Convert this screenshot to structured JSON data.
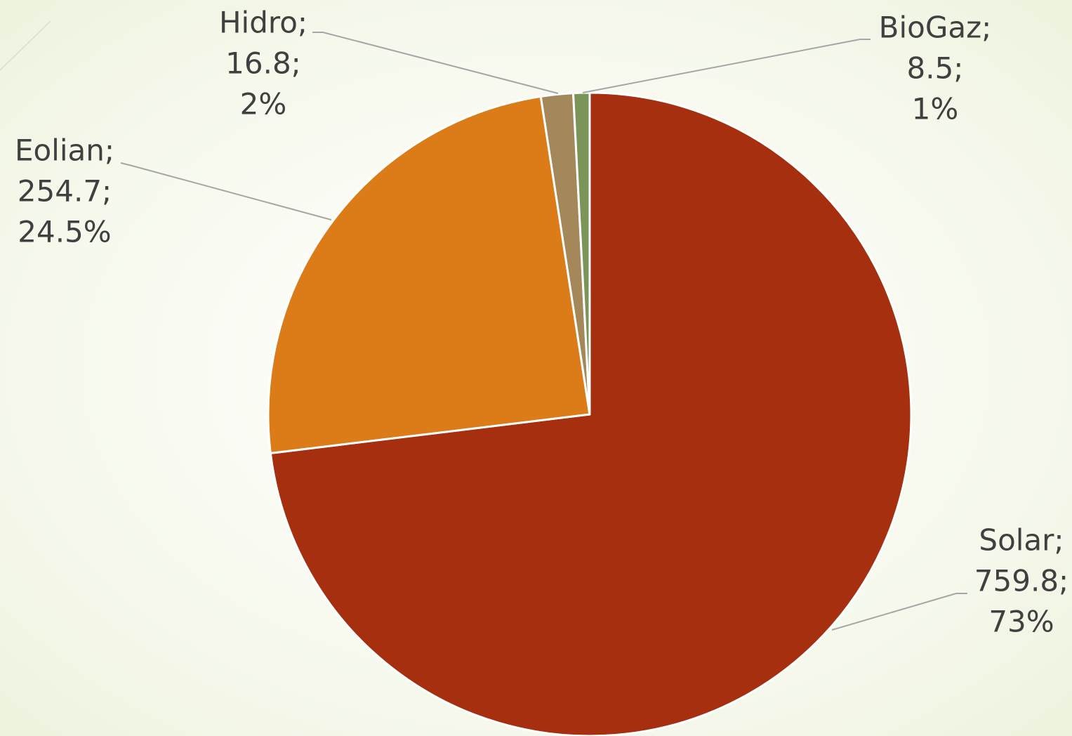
{
  "chart_data": {
    "type": "pie",
    "categories": [
      "Solar;",
      "Eolian;",
      "Hidro;",
      "BioGaz;"
    ],
    "values": [
      759.8,
      254.7,
      16.8,
      8.5
    ],
    "value_labels": [
      "759.8;",
      "254.7;",
      "16.8;",
      "8.5;"
    ],
    "percents": [
      73,
      24.5,
      2,
      1
    ],
    "percent_labels": [
      "73%",
      "24.5%",
      "2%",
      "1%"
    ],
    "colors": [
      "#a52f0e",
      "#dc7c18",
      "#a4885a",
      "#7b9458"
    ]
  }
}
